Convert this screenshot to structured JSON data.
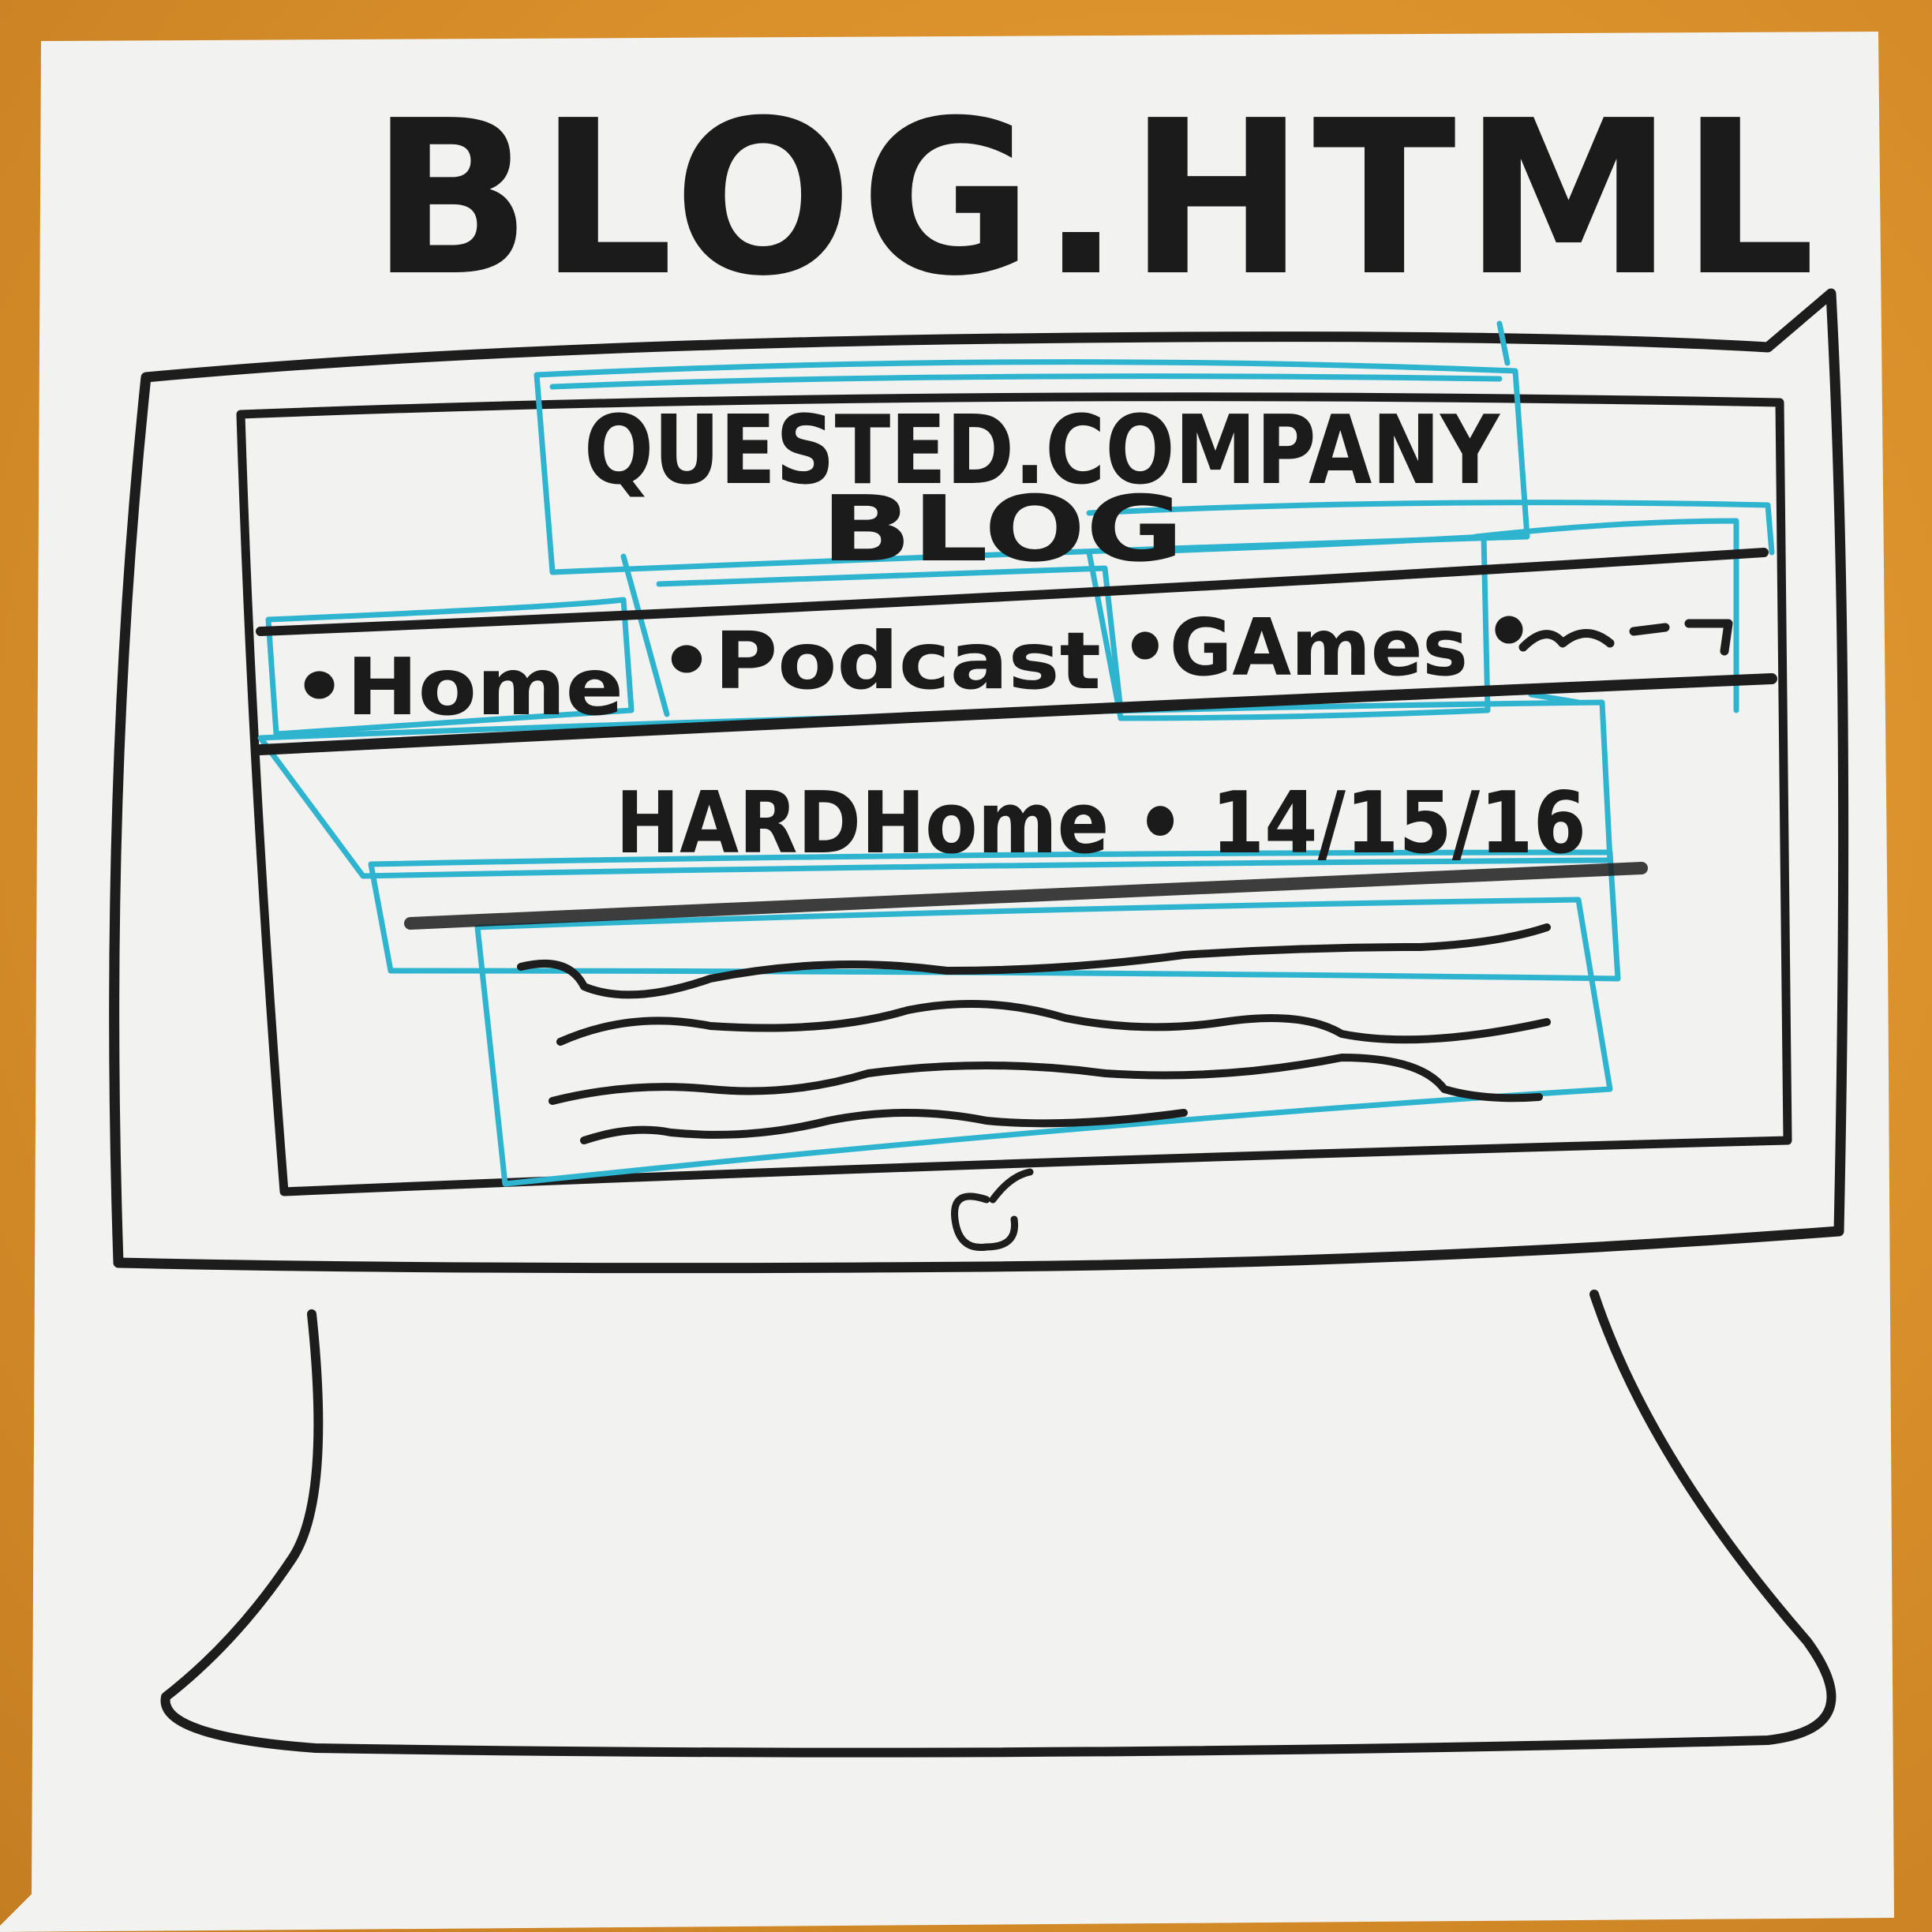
{
  "note": {
    "title": "BLOG.HTML"
  },
  "mockup": {
    "header_line1": "QUESTED.COMPANY",
    "header_line2": "BLOG",
    "nav": {
      "items": [
        {
          "label": "•Home"
        },
        {
          "label": "•Podcast"
        },
        {
          "label": "•GAmes"
        },
        {
          "label": "•"
        }
      ]
    },
    "post": {
      "title": "HARDHome • 14/15/16"
    },
    "logo_icon": "apple-icon"
  },
  "colors": {
    "ink": "#1d1d1d",
    "wireframe": "#2fb4cf",
    "paper": "#f2f2f0",
    "desk": "#d98f2a"
  }
}
